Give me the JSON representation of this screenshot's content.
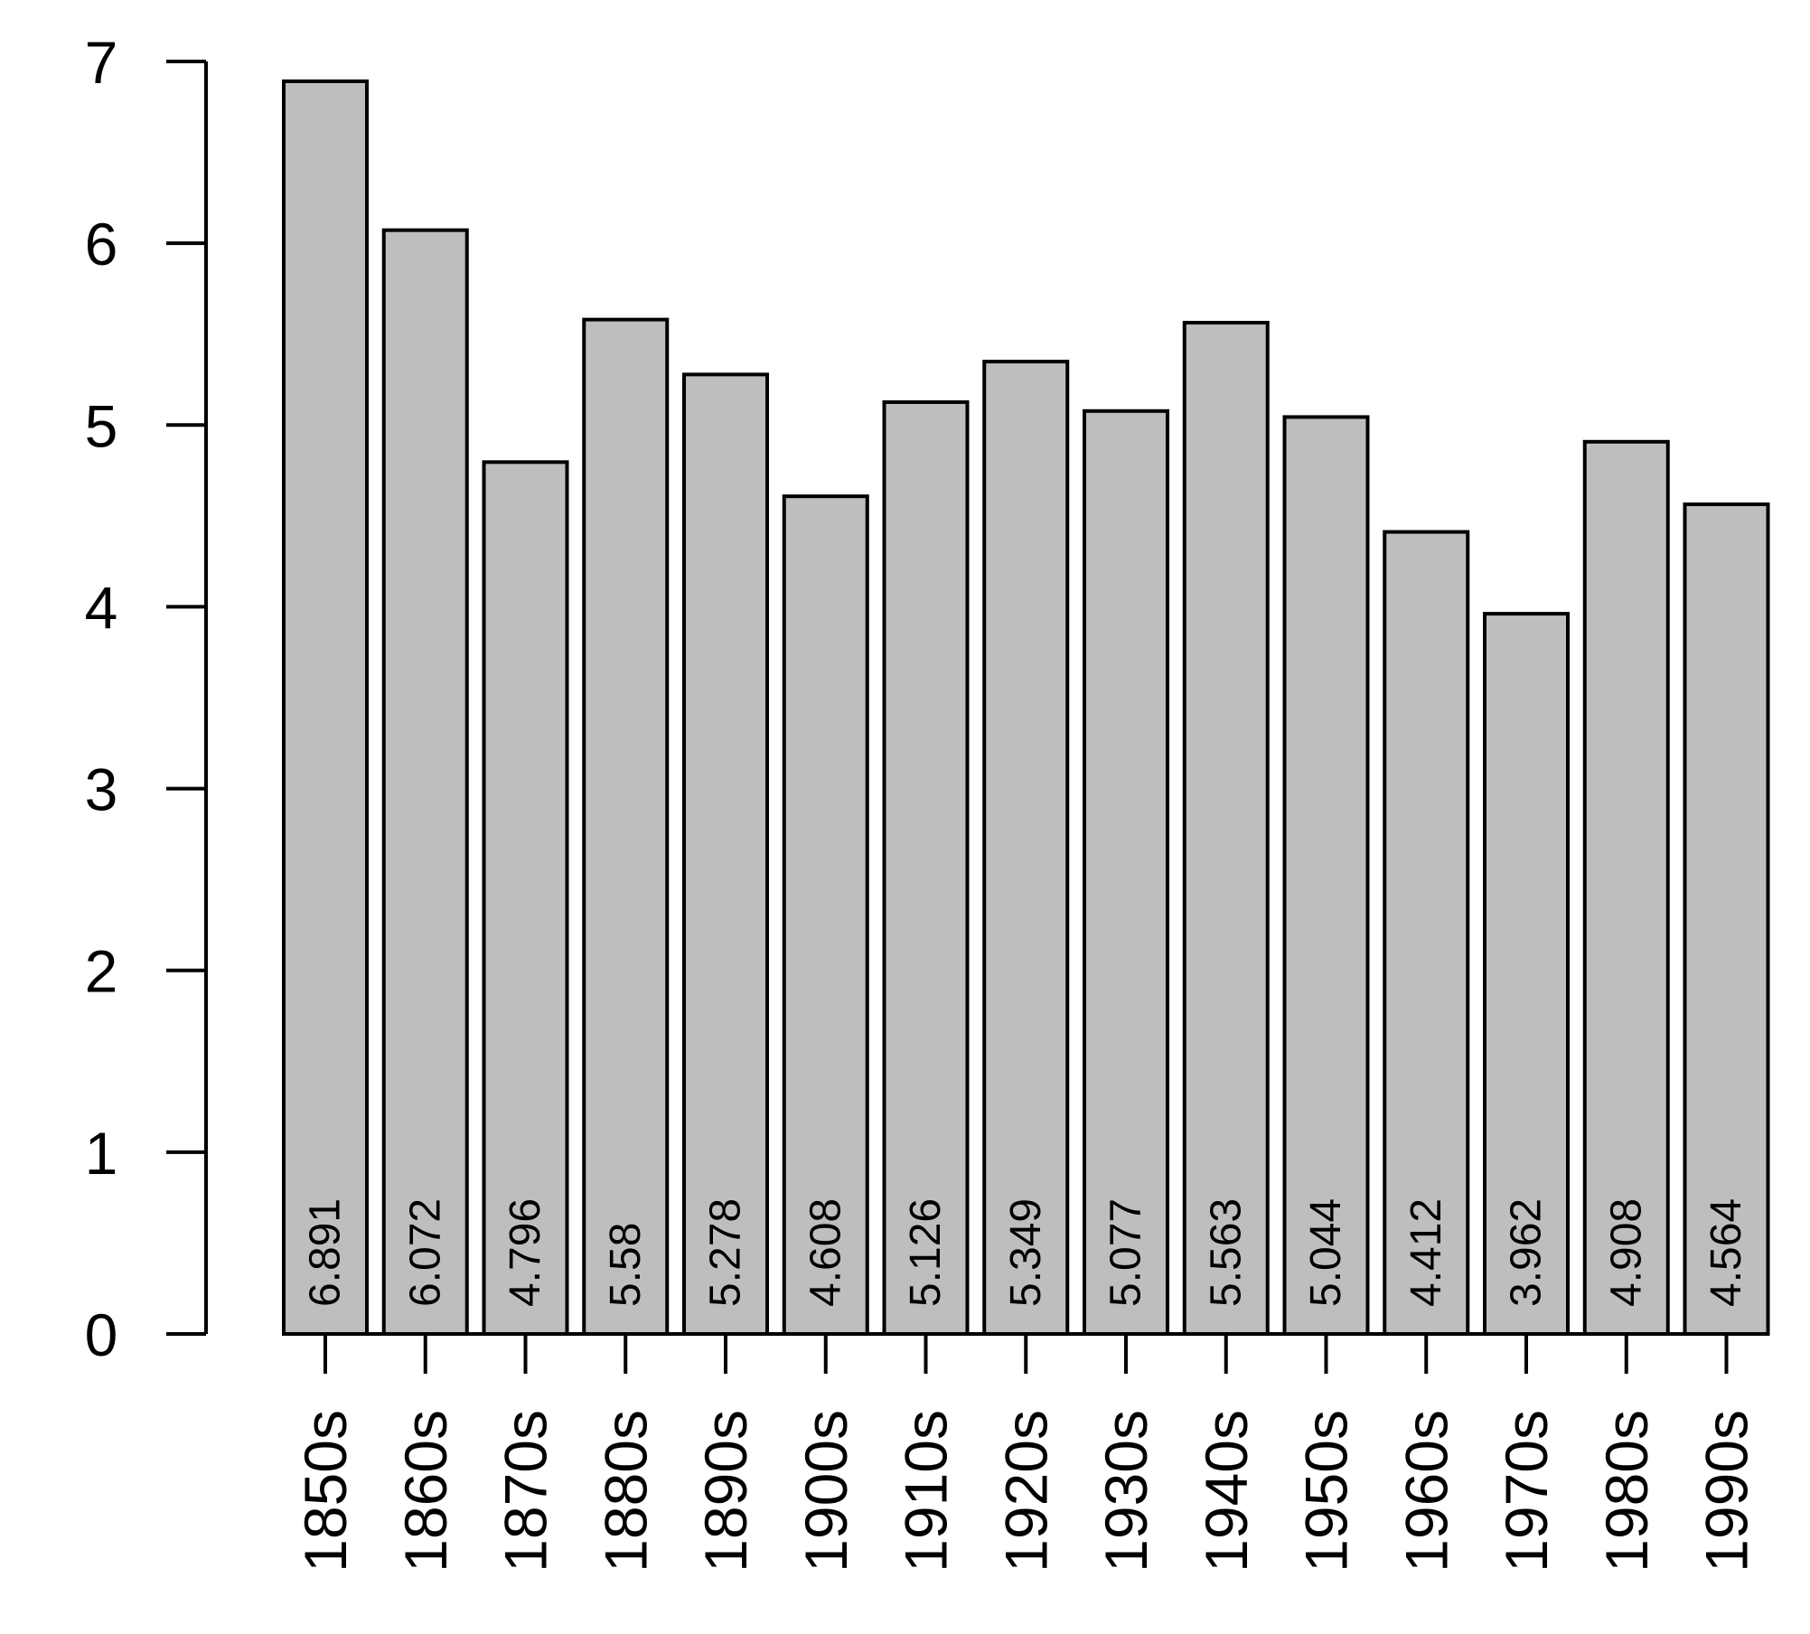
{
  "chart_data": {
    "type": "bar",
    "title": "",
    "xlabel": "",
    "ylabel": "",
    "categories": [
      "1850s",
      "1860s",
      "1870s",
      "1880s",
      "1890s",
      "1900s",
      "1910s",
      "1920s",
      "1930s",
      "1940s",
      "1950s",
      "1960s",
      "1970s",
      "1980s",
      "1990s"
    ],
    "values": [
      6.891,
      6.072,
      4.796,
      5.58,
      5.278,
      4.608,
      5.126,
      5.349,
      5.077,
      5.563,
      5.044,
      4.412,
      3.962,
      4.908,
      4.564
    ],
    "data_labels": [
      "6.891",
      "6.072",
      "4.796",
      "5.58",
      "5.278",
      "4.608",
      "5.126",
      "5.349",
      "5.077",
      "5.563",
      "5.044",
      "4.412",
      "3.962",
      "4.908",
      "4.564"
    ],
    "yticks": [
      "0",
      "1",
      "2",
      "3",
      "4",
      "5",
      "6",
      "7"
    ],
    "ylim": [
      0,
      7
    ],
    "grid": false,
    "legend": "none",
    "colors": {
      "bar_fill": "#bebebe",
      "bar_stroke": "#000000",
      "axis": "#000000",
      "background": "#ffffff"
    }
  }
}
